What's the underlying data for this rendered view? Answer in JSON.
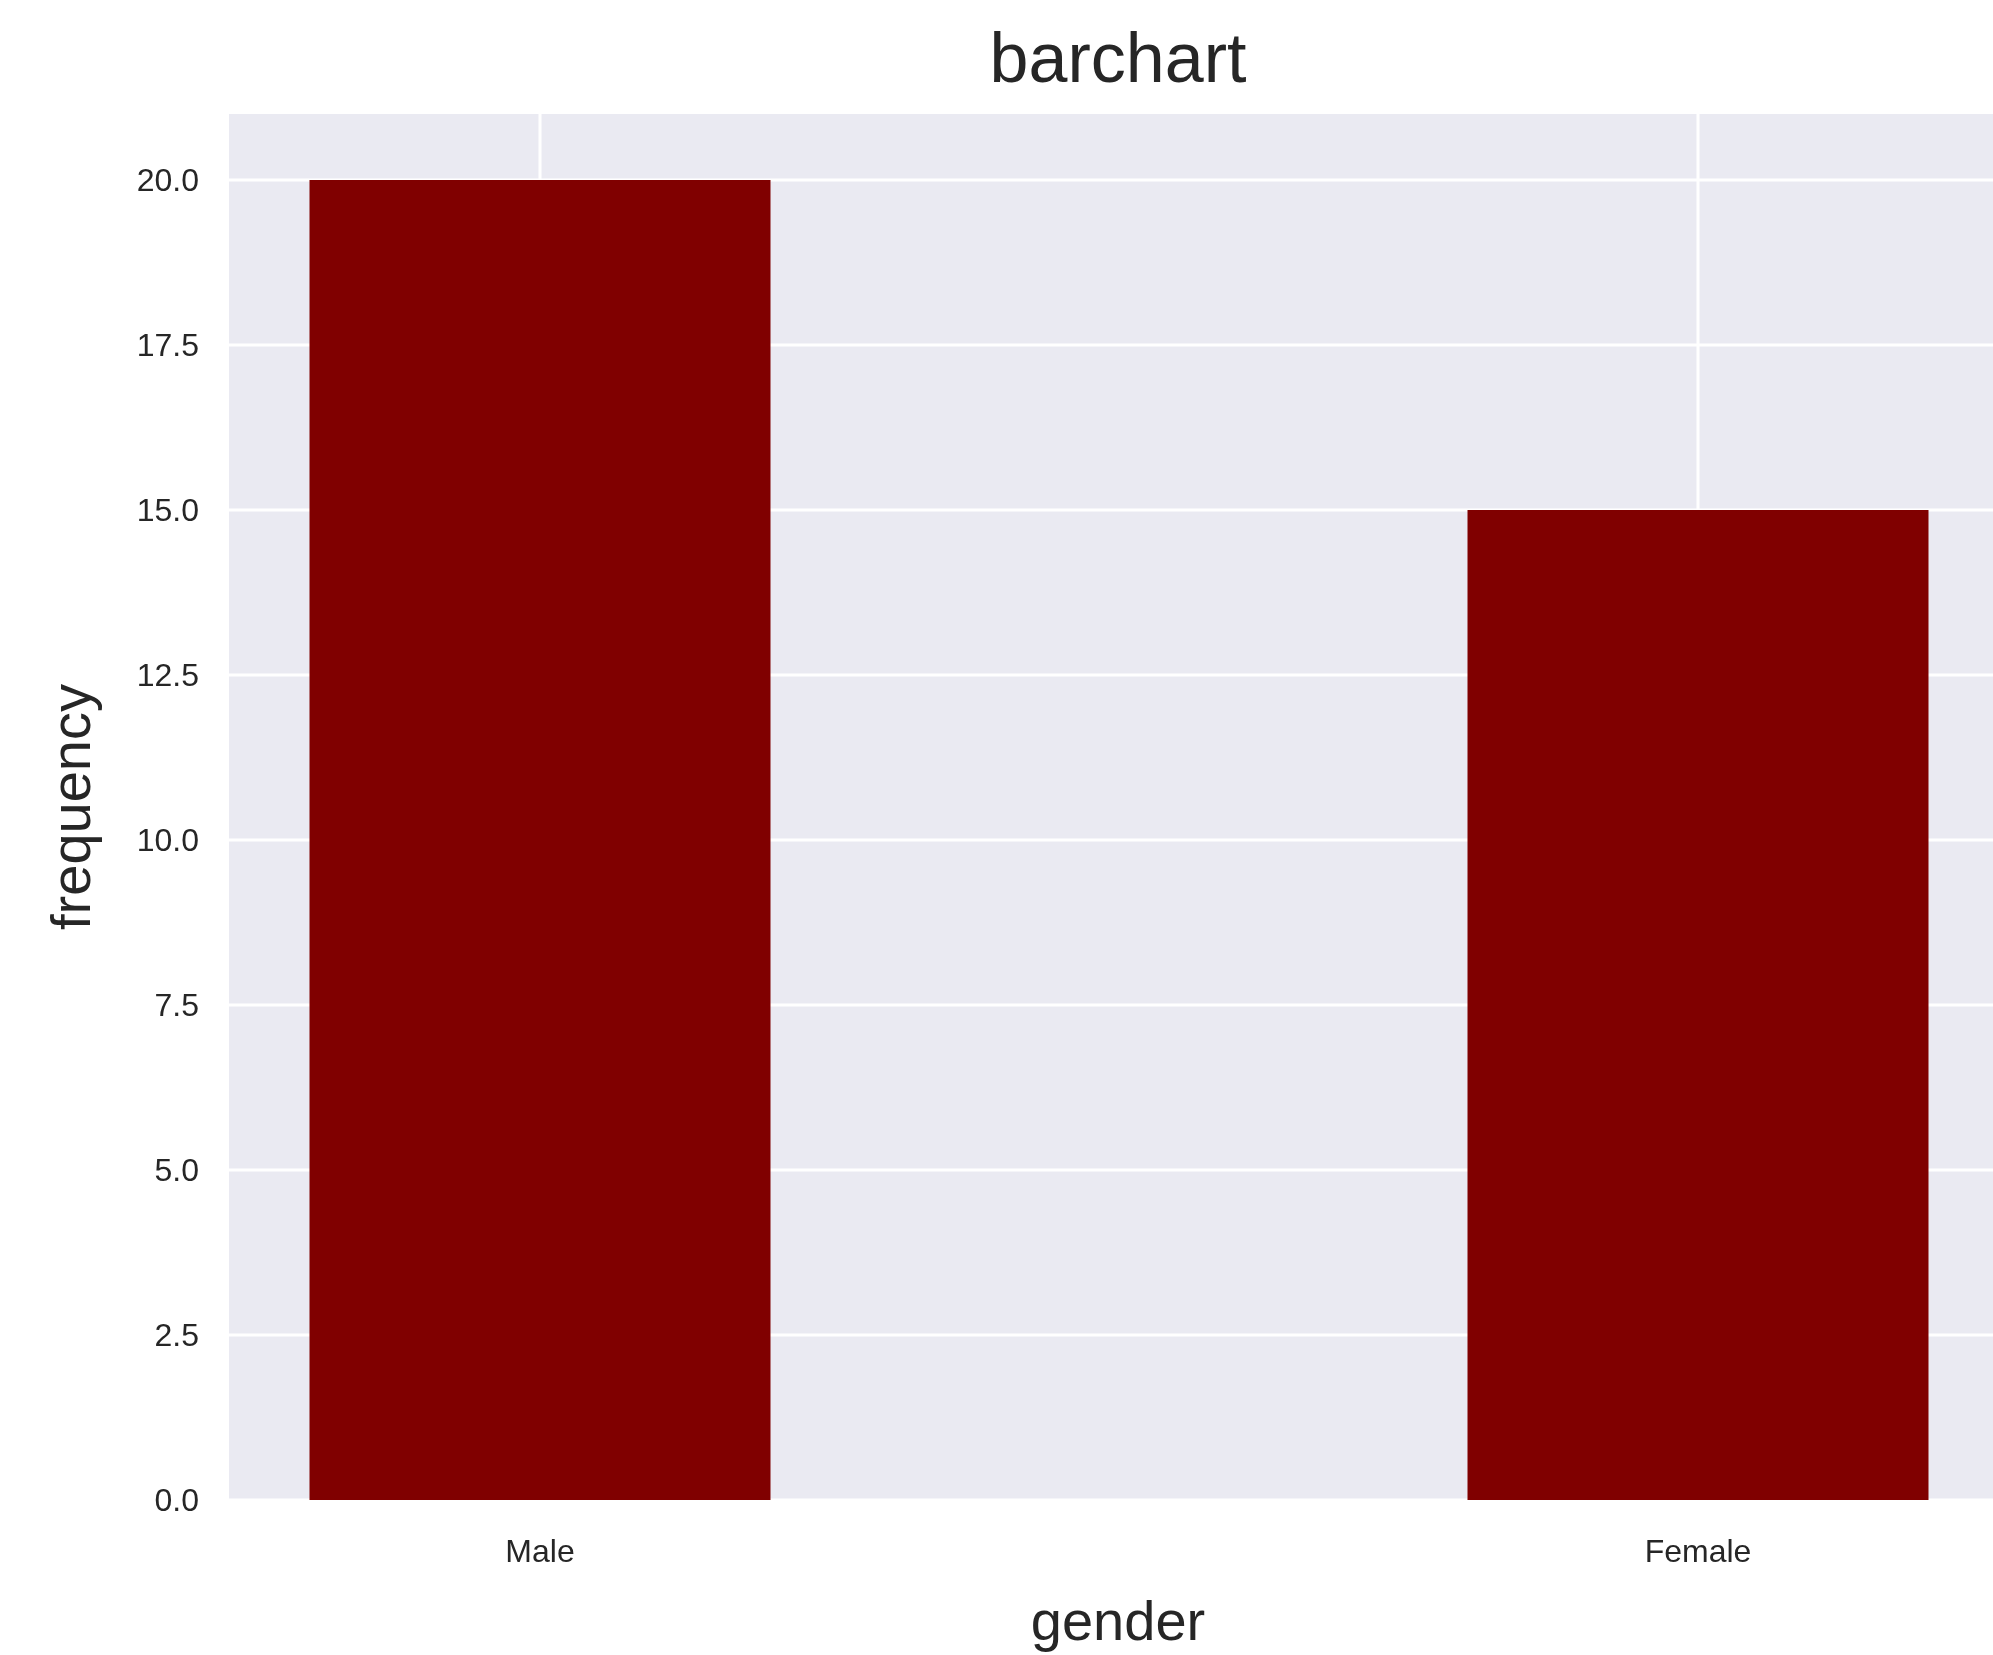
{
  "chart_data": {
    "type": "bar",
    "title": "barchart",
    "xlabel": "gender",
    "ylabel": "frequency",
    "categories": [
      "Male",
      "Female"
    ],
    "values": [
      20,
      15
    ],
    "color": "#800000",
    "ylim": [
      0,
      21
    ],
    "yticks": [
      {
        "value": 0,
        "label": "0.0"
      },
      {
        "value": 2.5,
        "label": "2.5"
      },
      {
        "value": 5,
        "label": "5.0"
      },
      {
        "value": 7.5,
        "label": "7.5"
      },
      {
        "value": 10,
        "label": "10.0"
      },
      {
        "value": 12.5,
        "label": "12.5"
      },
      {
        "value": 15,
        "label": "15.0"
      },
      {
        "value": 17.5,
        "label": "17.5"
      },
      {
        "value": 20,
        "label": "20.0"
      }
    ],
    "grid": true
  }
}
